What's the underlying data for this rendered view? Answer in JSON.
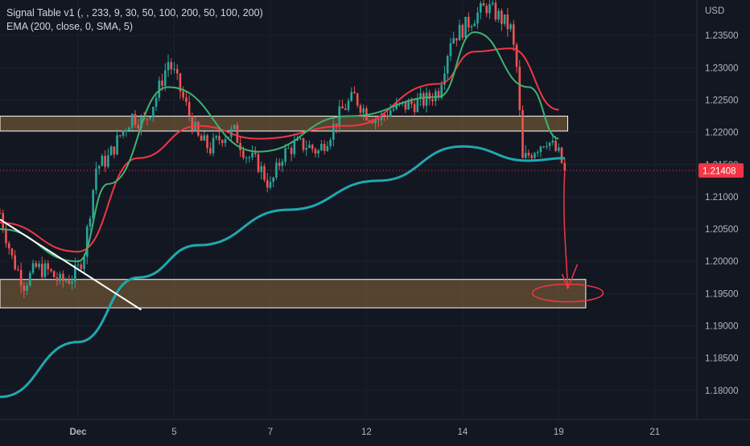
{
  "legend": {
    "line1": "Signal Table v1 (, , 233, 9, 30, 50, 100, 200, 50, 100, 200)",
    "line2": "EMA (200, close, 0, SMA, 5)"
  },
  "colors": {
    "background": "#131722",
    "up": "#26a69a",
    "down": "#ef5350",
    "ema_long": "#1fa8b0",
    "ema_mid": "#3cb371",
    "ema_slow": "#f23645",
    "zone_fill": "#8a6a3a",
    "zone_border": "#ffffff",
    "trendline": "#ffffff",
    "drawing": "#f23645",
    "price_tag": "#f23645"
  },
  "chart_data": {
    "type": "candlestick",
    "currency": "USD",
    "last_price": 1.21408,
    "last_price_label": "1.21408",
    "x_ticks": [
      "Dec",
      "5",
      "7",
      "12",
      "14",
      "19",
      "21"
    ],
    "x_tick_positions": [
      0,
      16,
      32,
      48,
      64,
      80,
      96
    ],
    "ylim": [
      1.1755,
      1.2405
    ],
    "y_ticks": [
      1.18,
      1.185,
      1.19,
      1.195,
      1.2,
      1.205,
      1.21,
      1.215,
      1.22,
      1.225,
      1.23,
      1.235
    ],
    "y_tick_labels": [
      "1.18000",
      "1.18500",
      "1.19000",
      "1.19500",
      "1.20000",
      "1.20500",
      "1.21000",
      "1.21500",
      "1.22000",
      "1.22500",
      "1.23000",
      "1.23500"
    ],
    "xlim": [
      -13,
      103
    ],
    "key_closes": [
      [
        -13,
        1.2075
      ],
      [
        -11,
        1.2005
      ],
      [
        -9,
        1.1965
      ],
      [
        -7,
        1.199
      ],
      [
        -5,
        1.1985
      ],
      [
        -3,
        1.1968
      ],
      [
        -1,
        1.1975
      ],
      [
        0,
        1.1988
      ],
      [
        1,
        1.2015
      ],
      [
        3,
        1.2145
      ],
      [
        5,
        1.216
      ],
      [
        7,
        1.2195
      ],
      [
        9,
        1.2225
      ],
      [
        11,
        1.2215
      ],
      [
        13,
        1.2255
      ],
      [
        15,
        1.231
      ],
      [
        16,
        1.229
      ],
      [
        18,
        1.224
      ],
      [
        20,
        1.219
      ],
      [
        22,
        1.2175
      ],
      [
        24,
        1.2195
      ],
      [
        26,
        1.22
      ],
      [
        28,
        1.2165
      ],
      [
        30,
        1.215
      ],
      [
        32,
        1.2115
      ],
      [
        34,
        1.2165
      ],
      [
        36,
        1.218
      ],
      [
        38,
        1.218
      ],
      [
        40,
        1.217
      ],
      [
        42,
        1.22
      ],
      [
        44,
        1.2235
      ],
      [
        46,
        1.2255
      ],
      [
        48,
        1.223
      ],
      [
        50,
        1.222
      ],
      [
        52,
        1.2235
      ],
      [
        54,
        1.224
      ],
      [
        56,
        1.2245
      ],
      [
        58,
        1.225
      ],
      [
        60,
        1.2265
      ],
      [
        62,
        1.2345
      ],
      [
        64,
        1.236
      ],
      [
        66,
        1.238
      ],
      [
        68,
        1.2395
      ],
      [
        70,
        1.238
      ],
      [
        72,
        1.236
      ],
      [
        73,
        1.23
      ],
      [
        74,
        1.2155
      ],
      [
        76,
        1.2175
      ],
      [
        78,
        1.219
      ],
      [
        80,
        1.2165
      ],
      [
        81,
        1.2141
      ]
    ],
    "ema_long": [
      [
        -13,
        1.179
      ],
      [
        0,
        1.1875
      ],
      [
        10,
        1.1975
      ],
      [
        20,
        1.2025
      ],
      [
        35,
        1.208
      ],
      [
        50,
        1.2125
      ],
      [
        64,
        1.2178
      ],
      [
        75,
        1.2156
      ],
      [
        81,
        1.216
      ]
    ],
    "ema_mid": [
      [
        -13,
        1.205
      ],
      [
        0,
        1.2
      ],
      [
        5,
        1.212
      ],
      [
        15,
        1.227
      ],
      [
        30,
        1.217
      ],
      [
        45,
        1.2225
      ],
      [
        60,
        1.2255
      ],
      [
        66,
        1.2355
      ],
      [
        75,
        1.227
      ],
      [
        80,
        1.219
      ]
    ],
    "ema_slow": [
      [
        -13,
        1.206
      ],
      [
        0,
        1.2015
      ],
      [
        10,
        1.216
      ],
      [
        20,
        1.221
      ],
      [
        30,
        1.219
      ],
      [
        45,
        1.221
      ],
      [
        60,
        1.2275
      ],
      [
        66,
        1.2325
      ],
      [
        72,
        1.233
      ],
      [
        80,
        1.2235
      ]
    ],
    "zones": [
      {
        "x0": -13,
        "x1": 81.5,
        "y0": 1.2202,
        "y1": 1.2225
      },
      {
        "x0": -13,
        "x1": 84.5,
        "y0": 1.1928,
        "y1": 1.1972
      }
    ],
    "trendline": {
      "x0": -13,
      "y0": 1.2065,
      "x1": 10.5,
      "y1": 1.1925
    },
    "annotation": {
      "arrow_from": [
        81,
        1.214
      ],
      "arrow_to": [
        81.5,
        1.1958
      ],
      "circle_center": [
        81.5,
        1.1951
      ]
    }
  }
}
